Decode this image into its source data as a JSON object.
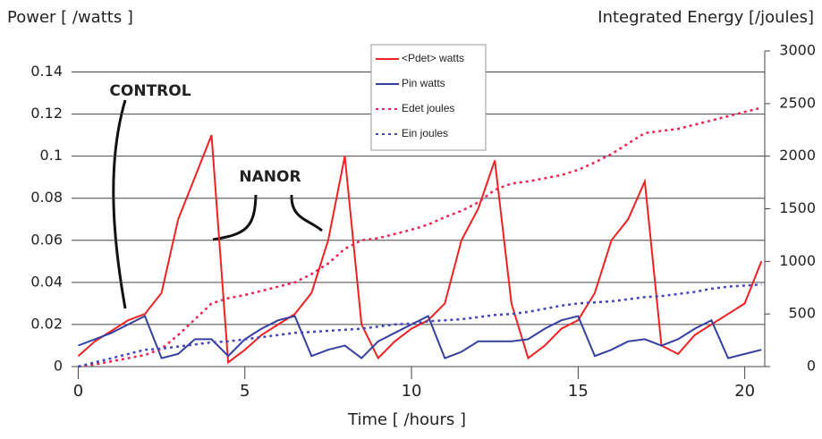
{
  "chart_data": {
    "type": "line",
    "y_axis_label": "Power [ /watts ]",
    "y2_axis_label": "Integrated Energy [/joules]",
    "x_axis_label": "Time [ /hours ]",
    "annotations": [
      "CONTROL",
      "NANOR"
    ],
    "xlim": [
      -0.2,
      20.6
    ],
    "xticks": [
      0,
      5,
      10,
      15,
      20
    ],
    "ylim": [
      0,
      0.15
    ],
    "yticks": [
      0,
      0.02,
      0.04,
      0.06,
      0.08,
      0.1,
      0.12,
      0.14
    ],
    "y2lim": [
      0,
      3000
    ],
    "y2ticks": [
      0,
      500,
      1000,
      1500,
      2000,
      2500,
      3000
    ],
    "grid": true,
    "x": [
      0,
      0.5,
      1,
      1.5,
      2,
      2.5,
      3,
      3.5,
      4,
      4.5,
      5,
      5.5,
      6,
      6.5,
      7,
      7.5,
      8,
      8.5,
      9,
      9.5,
      10,
      10.5,
      11,
      11.5,
      12,
      12.5,
      13,
      13.5,
      14,
      14.5,
      15,
      15.5,
      16,
      16.5,
      17,
      17.5,
      18,
      18.5,
      19,
      19.5,
      20,
      20.5
    ],
    "series": [
      {
        "name": "<Pdet> watts",
        "color": "#ee2222",
        "line_style": "solid",
        "values": [
          0.005,
          0.012,
          0.017,
          0.022,
          0.025,
          0.035,
          0.07,
          0.09,
          0.11,
          0.002,
          0.008,
          0.015,
          0.02,
          0.025,
          0.035,
          0.06,
          0.1,
          0.02,
          0.004,
          0.012,
          0.018,
          0.022,
          0.03,
          0.06,
          0.075,
          0.098,
          0.03,
          0.004,
          0.01,
          0.018,
          0.022,
          0.035,
          0.06,
          0.07,
          0.088,
          0.01,
          0.006,
          0.015,
          0.02,
          0.025,
          0.03,
          0.05
        ]
      },
      {
        "name": "Pin watts",
        "color": "#3340a0",
        "line_style": "solid",
        "values": [
          0.01,
          0.013,
          0.016,
          0.02,
          0.024,
          0.004,
          0.006,
          0.013,
          0.013,
          0.005,
          0.013,
          0.018,
          0.022,
          0.024,
          0.005,
          0.008,
          0.01,
          0.004,
          0.012,
          0.016,
          0.02,
          0.024,
          0.004,
          0.007,
          0.012,
          0.012,
          0.012,
          0.013,
          0.018,
          0.022,
          0.024,
          0.005,
          0.008,
          0.012,
          0.013,
          0.01,
          0.013,
          0.018,
          0.022,
          0.004,
          0.006,
          0.008
        ]
      },
      {
        "name": "Edet joules",
        "color": "#ee2255",
        "line_style": "dashed",
        "axis": "y2",
        "values": [
          0,
          20,
          50,
          80,
          110,
          170,
          300,
          450,
          600,
          650,
          680,
          720,
          760,
          800,
          880,
          980,
          1120,
          1200,
          1220,
          1260,
          1300,
          1350,
          1420,
          1480,
          1560,
          1680,
          1740,
          1760,
          1790,
          1820,
          1870,
          1940,
          2020,
          2120,
          2220,
          2240,
          2260,
          2300,
          2340,
          2380,
          2420,
          2460
        ]
      },
      {
        "name": "Ein joules",
        "color": "#4444bb",
        "line_style": "dashed",
        "axis": "y2",
        "values": [
          0,
          40,
          80,
          120,
          160,
          170,
          190,
          210,
          230,
          240,
          260,
          280,
          300,
          320,
          330,
          340,
          350,
          360,
          380,
          400,
          410,
          430,
          440,
          450,
          470,
          490,
          500,
          520,
          550,
          580,
          600,
          610,
          620,
          640,
          660,
          670,
          690,
          710,
          740,
          760,
          770,
          780
        ]
      }
    ]
  }
}
